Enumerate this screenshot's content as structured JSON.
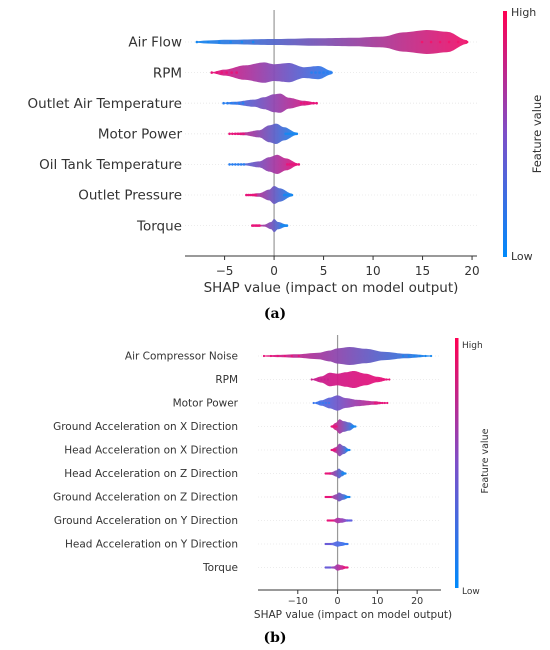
{
  "chart_data": [
    {
      "type": "violin",
      "caption": "(a)",
      "xlabel": "SHAP value (impact on model output)",
      "xlim": [
        -9,
        20.5
      ],
      "xticks": [
        -5,
        0,
        5,
        10,
        15,
        20
      ],
      "colorbar": {
        "label": "Feature value",
        "high": "High",
        "low": "Low",
        "colors": [
          "#008afb",
          "#ff0052"
        ]
      },
      "features": [
        {
          "name": "Air Flow",
          "min": -7.8,
          "max": 19.5,
          "profile": [
            [
              -7.8,
              0.06
            ],
            [
              -7,
              0.12
            ],
            [
              -5,
              0.18
            ],
            [
              0,
              0.25
            ],
            [
              5,
              0.32
            ],
            [
              8,
              0.35
            ],
            [
              11,
              0.45
            ],
            [
              13,
              0.8
            ],
            [
              15.5,
              1.0
            ],
            [
              17.5,
              0.85
            ],
            [
              19.5,
              0.15
            ]
          ],
          "color_low_side": "#1888f0",
          "color_high_side": "#f0176e"
        },
        {
          "name": "RPM",
          "min": -6.3,
          "max": 5.8,
          "profile": [
            [
              -6.3,
              0.05
            ],
            [
              -5,
              0.25
            ],
            [
              -3,
              0.6
            ],
            [
              -1,
              0.85
            ],
            [
              0,
              0.7
            ],
            [
              1.5,
              0.8
            ],
            [
              3,
              0.45
            ],
            [
              4.5,
              0.55
            ],
            [
              5.8,
              0.15
            ]
          ],
          "color_low_side": "#e8157a",
          "color_high_side": "#2a80f0"
        },
        {
          "name": "Outlet Air Temperature",
          "min": -5.1,
          "max": 4.3,
          "profile": [
            [
              -5.1,
              0.05
            ],
            [
              -4,
              0.12
            ],
            [
              -2,
              0.3
            ],
            [
              -1,
              0.5
            ],
            [
              0,
              0.75
            ],
            [
              0.6,
              0.8
            ],
            [
              1.5,
              0.45
            ],
            [
              3,
              0.2
            ],
            [
              4.3,
              0.06
            ]
          ],
          "color_low_side": "#2a80f0",
          "color_high_side": "#e8157a"
        },
        {
          "name": "Motor Power",
          "min": -4.5,
          "max": 2.3,
          "profile": [
            [
              -4.5,
              0.05
            ],
            [
              -3,
              0.12
            ],
            [
              -1.5,
              0.3
            ],
            [
              -0.5,
              0.7
            ],
            [
              0.2,
              0.85
            ],
            [
              1,
              0.55
            ],
            [
              2.3,
              0.1
            ]
          ],
          "color_low_side": "#e8157a",
          "color_high_side": "#1888f0"
        },
        {
          "name": "Oil Tank Temperature",
          "min": -4.5,
          "max": 2.5,
          "profile": [
            [
              -4.5,
              0.04
            ],
            [
              -3,
              0.08
            ],
            [
              -1.5,
              0.25
            ],
            [
              -0.5,
              0.6
            ],
            [
              0.3,
              0.8
            ],
            [
              1.2,
              0.5
            ],
            [
              2.5,
              0.06
            ]
          ],
          "color_low_side": "#2a80f0",
          "color_high_side": "#e8157a"
        },
        {
          "name": "Outlet Pressure",
          "min": -2.8,
          "max": 1.8,
          "profile": [
            [
              -2.8,
              0.05
            ],
            [
              -1.5,
              0.15
            ],
            [
              -0.5,
              0.45
            ],
            [
              0,
              0.75
            ],
            [
              0.6,
              0.55
            ],
            [
              1.8,
              0.12
            ]
          ],
          "color_low_side": "#e8157a",
          "color_high_side": "#1888f0"
        },
        {
          "name": "Torque",
          "min": -2.2,
          "max": 1.3,
          "profile": [
            [
              -2.2,
              0.04
            ],
            [
              -1,
              0.08
            ],
            [
              -0.3,
              0.3
            ],
            [
              0,
              0.55
            ],
            [
              0.4,
              0.3
            ],
            [
              1.3,
              0.08
            ]
          ],
          "color_low_side": "#e8157a",
          "color_high_side": "#1888f0"
        }
      ]
    },
    {
      "type": "violin",
      "caption": "(b)",
      "xlabel": "SHAP value (impact on model output)",
      "xlim": [
        -20,
        26
      ],
      "xticks": [
        -10,
        0,
        10,
        20
      ],
      "colorbar": {
        "label": "Feature value",
        "high": "High",
        "low": "Low",
        "colors": [
          "#008afb",
          "#ff0052"
        ]
      },
      "features": [
        {
          "name": "Air Compressor Noise",
          "min": -18.5,
          "max": 23.5,
          "profile": [
            [
              -18.5,
              0.06
            ],
            [
              -15,
              0.12
            ],
            [
              -10,
              0.2
            ],
            [
              -5,
              0.35
            ],
            [
              -2,
              0.6
            ],
            [
              0,
              0.85
            ],
            [
              3,
              1.0
            ],
            [
              7,
              0.8
            ],
            [
              12,
              0.45
            ],
            [
              17,
              0.25
            ],
            [
              23.5,
              0.06
            ]
          ],
          "color_low_side": "#e8157a",
          "color_high_side": "#1888f0"
        },
        {
          "name": "RPM",
          "min": -6.5,
          "max": 13,
          "profile": [
            [
              -6.5,
              0.05
            ],
            [
              -4,
              0.35
            ],
            [
              -2,
              0.75
            ],
            [
              0,
              0.65
            ],
            [
              2,
              0.8
            ],
            [
              4,
              0.95
            ],
            [
              7,
              0.65
            ],
            [
              10,
              0.3
            ],
            [
              13,
              0.05
            ]
          ],
          "color_low_side": "#c8208e",
          "color_high_side": "#e8157a"
        },
        {
          "name": "Motor Power",
          "min": -6,
          "max": 12.5,
          "profile": [
            [
              -6,
              0.05
            ],
            [
              -4,
              0.3
            ],
            [
              -2,
              0.6
            ],
            [
              0,
              0.85
            ],
            [
              2,
              0.55
            ],
            [
              5,
              0.35
            ],
            [
              9,
              0.2
            ],
            [
              12.5,
              0.05
            ]
          ],
          "color_low_side": "#3a78f0",
          "color_high_side": "#e8157a"
        },
        {
          "name": "Ground Acceleration on X Direction",
          "min": -1.5,
          "max": 4.5,
          "profile": [
            [
              -1.5,
              0.1
            ],
            [
              -0.5,
              0.4
            ],
            [
              0.5,
              0.8
            ],
            [
              1.5,
              0.6
            ],
            [
              3,
              0.45
            ],
            [
              4.5,
              0.08
            ]
          ],
          "color_low_side": "#e8157a",
          "color_high_side": "#1888f0"
        },
        {
          "name": "Head Acceleration on X Direction",
          "min": -1.5,
          "max": 3,
          "profile": [
            [
              -1.5,
              0.1
            ],
            [
              -0.5,
              0.3
            ],
            [
              0.5,
              0.7
            ],
            [
              1.5,
              0.45
            ],
            [
              3,
              0.08
            ]
          ],
          "color_low_side": "#e8157a",
          "color_high_side": "#1888f0"
        },
        {
          "name": "Head Acceleration on Z Direction",
          "min": -3,
          "max": 2,
          "profile": [
            [
              -3,
              0.06
            ],
            [
              -1.5,
              0.15
            ],
            [
              -0.3,
              0.35
            ],
            [
              0.3,
              0.55
            ],
            [
              1.2,
              0.3
            ],
            [
              2,
              0.08
            ]
          ],
          "color_low_side": "#e8157a",
          "color_high_side": "#1888f0"
        },
        {
          "name": "Ground Acceleration on Z Direction",
          "min": -3,
          "max": 3,
          "profile": [
            [
              -3,
              0.06
            ],
            [
              -1.5,
              0.12
            ],
            [
              -0.3,
              0.3
            ],
            [
              0.3,
              0.5
            ],
            [
              1.5,
              0.3
            ],
            [
              3,
              0.06
            ]
          ],
          "color_low_side": "#e8157a",
          "color_high_side": "#1888f0"
        },
        {
          "name": "Ground Acceleration on Y Direction",
          "min": -2.5,
          "max": 3.5,
          "profile": [
            [
              -2.5,
              0.06
            ],
            [
              -1,
              0.12
            ],
            [
              0,
              0.3
            ],
            [
              1,
              0.25
            ],
            [
              2.5,
              0.12
            ],
            [
              3.5,
              0.05
            ]
          ],
          "color_low_side": "#e8157a",
          "color_high_side": "#6060e0"
        },
        {
          "name": "Head Acceleration on Y Direction",
          "min": -3,
          "max": 2.5,
          "profile": [
            [
              -3,
              0.06
            ],
            [
              -1.5,
              0.12
            ],
            [
              0,
              0.3
            ],
            [
              1,
              0.22
            ],
            [
              2.5,
              0.06
            ]
          ],
          "color_low_side": "#6a5cd8",
          "color_high_side": "#3a78f0"
        },
        {
          "name": "Torque",
          "min": -3,
          "max": 2.5,
          "profile": [
            [
              -3,
              0.05
            ],
            [
              -1,
              0.12
            ],
            [
              0,
              0.35
            ],
            [
              1,
              0.25
            ],
            [
              2.5,
              0.05
            ]
          ],
          "color_low_side": "#6a5cd8",
          "color_high_side": "#e8157a"
        }
      ]
    }
  ]
}
